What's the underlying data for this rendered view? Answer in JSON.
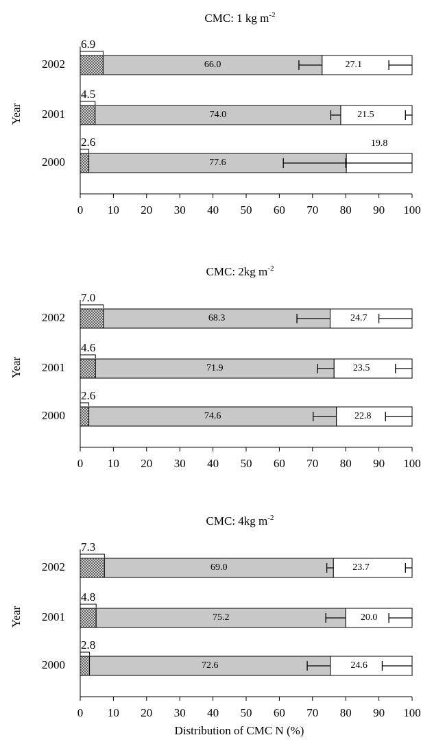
{
  "chart_data": [
    {
      "type": "bar",
      "orientation": "horizontal",
      "stacked": true,
      "title": "CMC: 1 kg m",
      "title_sup": "-2",
      "ylabel": "Year",
      "categories": [
        "2002",
        "2001",
        "2000"
      ],
      "series": [
        {
          "color": "#7a7a7a",
          "values": [
            6.9,
            4.5,
            2.6
          ]
        },
        {
          "color": "#c8c8c8",
          "values": [
            66.0,
            74.0,
            77.6
          ],
          "value_labels": [
            "66.0",
            "74.0",
            "77.6"
          ],
          "errors": [
            7,
            3,
            19
          ]
        },
        {
          "color": "#ffffff",
          "values": [
            27.1,
            21.5,
            19.8
          ],
          "value_labels": [
            "27.1",
            "21.5",
            "19.8"
          ],
          "errors": [
            7,
            2,
            20
          ]
        }
      ],
      "xlim": [
        0,
        100
      ],
      "xticks": [
        0,
        10,
        20,
        30,
        40,
        50,
        60,
        70,
        80,
        90,
        100
      ]
    },
    {
      "type": "bar",
      "orientation": "horizontal",
      "stacked": true,
      "title": "CMC: 2kg m",
      "title_sup": "-2",
      "ylabel": "Year",
      "categories": [
        "2002",
        "2001",
        "2000"
      ],
      "series": [
        {
          "color": "#7a7a7a",
          "values": [
            7.0,
            4.6,
            2.6
          ],
          "value_labels": [
            "7.0",
            "4.6",
            "2.6"
          ]
        },
        {
          "color": "#c8c8c8",
          "values": [
            68.3,
            71.9,
            74.6
          ],
          "value_labels": [
            "68.3",
            "71.9",
            "74.6"
          ],
          "errors": [
            10,
            5,
            7
          ]
        },
        {
          "color": "#ffffff",
          "values": [
            24.7,
            23.5,
            22.8
          ],
          "value_labels": [
            "24.7",
            "23.5",
            "22.8"
          ],
          "errors": [
            10,
            5,
            8
          ]
        }
      ],
      "xlim": [
        0,
        100
      ],
      "xticks": [
        0,
        10,
        20,
        30,
        40,
        50,
        60,
        70,
        80,
        90,
        100
      ]
    },
    {
      "type": "bar",
      "orientation": "horizontal",
      "stacked": true,
      "title": "CMC: 4kg m",
      "title_sup": "-2",
      "ylabel": "Year",
      "categories": [
        "2002",
        "2001",
        "2000"
      ],
      "series": [
        {
          "color": "#7a7a7a",
          "values": [
            7.3,
            4.8,
            2.8
          ]
        },
        {
          "color": "#c8c8c8",
          "values": [
            69.0,
            75.2,
            72.6
          ],
          "value_labels": [
            "69.0",
            "75.2",
            "72.6"
          ],
          "errors": [
            2,
            6,
            7
          ]
        },
        {
          "color": "#ffffff",
          "values": [
            23.7,
            20.0,
            24.6
          ],
          "value_labels": [
            "23.7",
            "20.0",
            "24.6"
          ],
          "errors": [
            2,
            7,
            9
          ]
        }
      ],
      "xlim": [
        0,
        100
      ],
      "xticks": [
        0,
        10,
        20,
        30,
        40,
        50,
        60,
        70,
        80,
        90,
        100
      ],
      "xlabel": "Distribution of CMC N (%)"
    }
  ]
}
